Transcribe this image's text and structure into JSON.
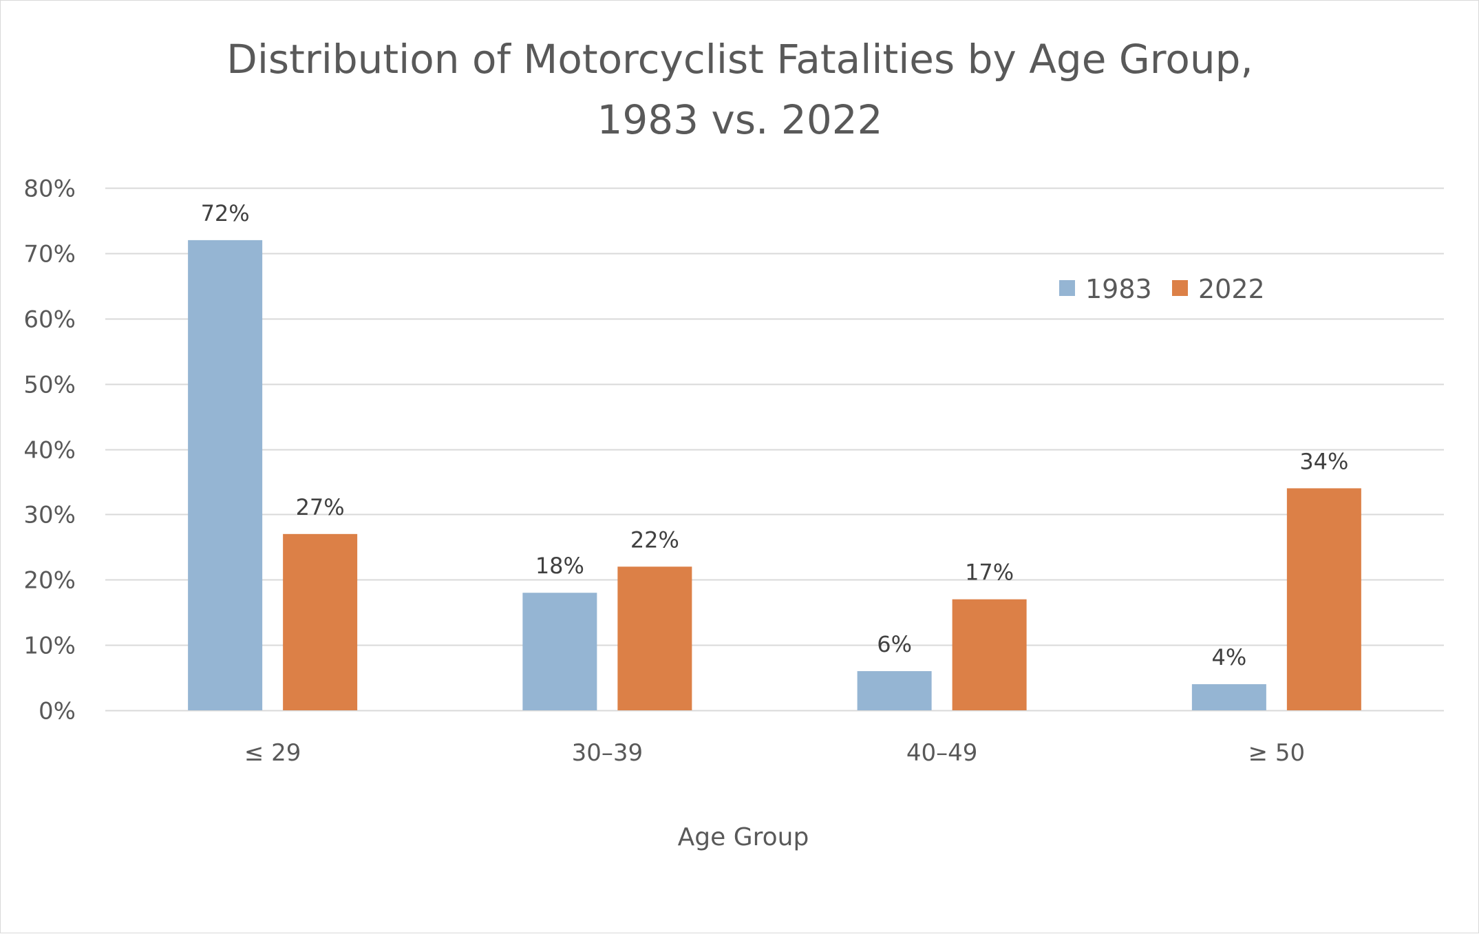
{
  "chart_data": {
    "type": "bar",
    "title_lines": [
      "Distribution of Motorcyclist Fatalities by Age Group,",
      "1983 vs. 2022"
    ],
    "xlabel": "Age Group",
    "ylabel": "",
    "categories": [
      "≤ 29",
      "30–39",
      "40–49",
      "≥ 50"
    ],
    "series": [
      {
        "name": "1983",
        "color": "#95b5d3",
        "values": [
          72,
          18,
          6,
          4
        ],
        "labels": [
          "72%",
          "18%",
          "6%",
          "4%"
        ]
      },
      {
        "name": "2022",
        "color": "#dc8047",
        "values": [
          27,
          22,
          17,
          34
        ],
        "labels": [
          "27%",
          "22%",
          "17%",
          "34%"
        ]
      }
    ],
    "ylim": [
      0,
      80
    ],
    "yticks": [
      0,
      10,
      20,
      30,
      40,
      50,
      60,
      70,
      80
    ],
    "ytick_labels": [
      "0%",
      "10%",
      "20%",
      "30%",
      "40%",
      "50%",
      "60%",
      "70%",
      "80%"
    ],
    "grid": true,
    "legend_position": "top-right",
    "gridline_color": "#d9d9d9"
  }
}
